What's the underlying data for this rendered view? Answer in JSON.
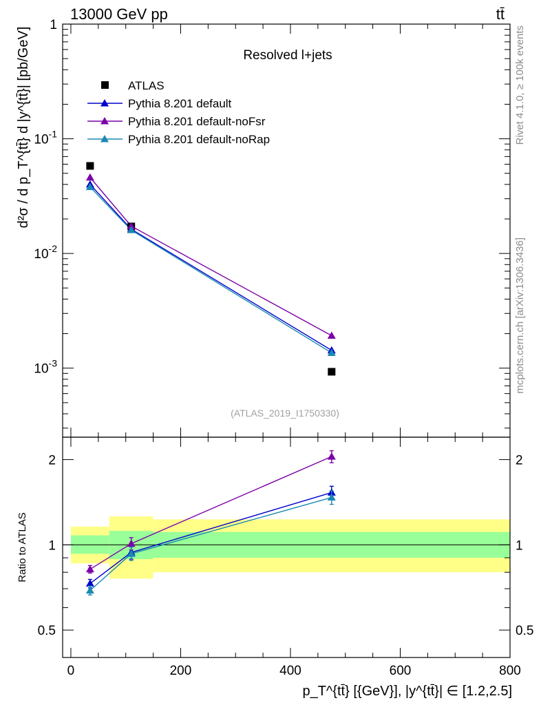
{
  "header": {
    "energy_label": "13000 GeV pp",
    "process_label": "tt̄"
  },
  "side_text": {
    "rivet": "Rivet 4.1.0, ≥ 100k events",
    "mcplots": "mcplots.cern.ch [arXiv:1306.3436]"
  },
  "chart_data": [
    {
      "type": "scatter",
      "panel": "main",
      "title": "Resolved l+jets",
      "analysis_id": "(ATLAS_2019_I1750330)",
      "ylabel": "d²σ / d p_T^{tt̄} d |y^{tt̄}| [pb/GeV]",
      "yscale": "log",
      "ylim": [
        0.00025,
        1
      ],
      "xlim": [
        -15,
        800
      ],
      "y_ticks": [
        "1",
        "10^{-1}",
        "10^{-2}",
        "10^{-3}"
      ],
      "y_tick_values": [
        1,
        0.1,
        0.01,
        0.001
      ],
      "x": [
        35,
        110,
        475
      ],
      "series": [
        {
          "name": "ATLAS",
          "marker": "square",
          "color": "#000000",
          "values": [
            0.058,
            0.0172,
            0.00093
          ]
        },
        {
          "name": "Pythia 8.201 default",
          "marker": "triangle",
          "color": "#0000cc",
          "values": [
            0.04,
            0.0163,
            0.00143
          ]
        },
        {
          "name": "Pythia 8.201 default-noFsr",
          "marker": "triangle",
          "color": "#7b00a8",
          "values": [
            0.046,
            0.0173,
            0.00192
          ]
        },
        {
          "name": "Pythia 8.201 default-noRap",
          "marker": "triangle",
          "color": "#1a88b3",
          "values": [
            0.038,
            0.016,
            0.00136
          ]
        }
      ]
    },
    {
      "type": "scatter",
      "panel": "ratio",
      "ylabel": "Ratio to ATLAS",
      "xlabel": "p_T^{tt̄} [{GeV}], |y^{tt̄}| ∈ [1.2,2.5]",
      "yscale": "log",
      "ylim": [
        0.4,
        2.4
      ],
      "xlim": [
        -15,
        800
      ],
      "x_ticks": [
        0,
        200,
        400,
        600,
        800
      ],
      "y_ticks": [
        0.5,
        1,
        2
      ],
      "bins": [
        {
          "low": 0,
          "high": 70,
          "stat_lo": 0.93,
          "stat_hi": 1.08,
          "tot_lo": 0.86,
          "tot_hi": 1.16
        },
        {
          "low": 70,
          "high": 150,
          "stat_lo": 0.89,
          "stat_hi": 1.12,
          "tot_lo": 0.76,
          "tot_hi": 1.26
        },
        {
          "low": 150,
          "high": 800,
          "stat_lo": 0.9,
          "stat_hi": 1.11,
          "tot_lo": 0.8,
          "tot_hi": 1.23
        }
      ],
      "x": [
        35,
        110,
        475
      ],
      "series": [
        {
          "name": "Pythia 8.201 default",
          "color": "#0000cc",
          "values": [
            0.73,
            0.94,
            1.53
          ],
          "err": [
            0.025,
            0.05,
            0.08
          ]
        },
        {
          "name": "Pythia 8.201 default-noFsr",
          "color": "#7b00a8",
          "values": [
            0.82,
            1.01,
            2.05
          ],
          "err": [
            0.025,
            0.05,
            0.1
          ]
        },
        {
          "name": "Pythia 8.201 default-noRap",
          "color": "#1a88b3",
          "values": [
            0.69,
            0.93,
            1.47
          ],
          "err": [
            0.025,
            0.05,
            0.08
          ]
        }
      ]
    }
  ]
}
